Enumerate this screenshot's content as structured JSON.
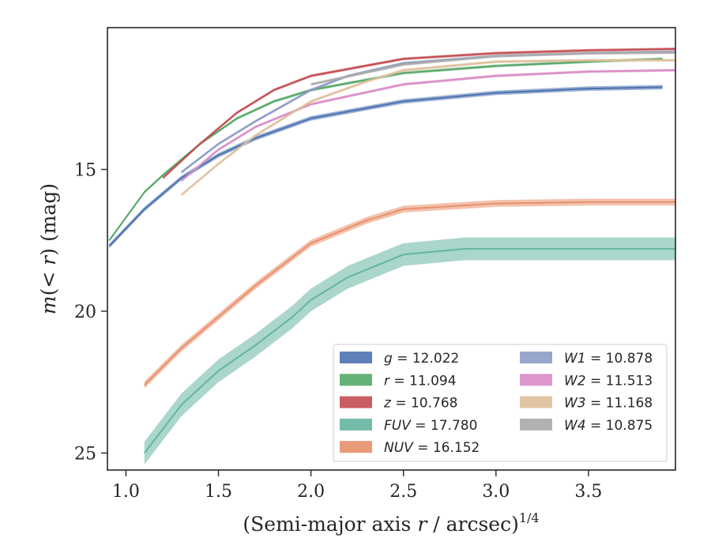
{
  "chart_data": {
    "type": "line",
    "title": "",
    "xlabel": "(Semi-major axis r / arcsec)^1/4",
    "xlabel_main": "(Semi-major axis ",
    "xlabel_var": "r",
    "xlabel_tail": " / arcsec)",
    "xlabel_exp": "1/4",
    "ylabel": "m(< r) (mag)",
    "ylabel_main": "m",
    "ylabel_mid": "(< ",
    "ylabel_var": "r",
    "ylabel_tail": ") (mag)",
    "xlim": [
      0.9,
      3.97
    ],
    "ylim": [
      25.6,
      10.0
    ],
    "y_inverted": true,
    "xticks": [
      1.0,
      1.5,
      2.0,
      2.5,
      3.0,
      3.5
    ],
    "xtick_labels": [
      "1.0",
      "1.5",
      "2.0",
      "2.5",
      "3.0",
      "3.5"
    ],
    "yticks": [
      15,
      20,
      25
    ],
    "ytick_labels": [
      "15",
      "20",
      "25"
    ],
    "grid": false,
    "legend_placement": "lower-right",
    "legend_columns": 2,
    "series": [
      {
        "name": "g = 12.022",
        "var": "g",
        "value": "12.022",
        "color": "#4c72b0",
        "x": [
          0.91,
          1.1,
          1.3,
          1.5,
          1.7,
          2.0,
          2.5,
          3.0,
          3.5,
          3.9
        ],
        "y": [
          17.7,
          16.4,
          15.3,
          14.5,
          13.9,
          13.2,
          12.6,
          12.3,
          12.15,
          12.1
        ],
        "band": 0.08
      },
      {
        "name": "r = 11.094",
        "var": "r",
        "value": "11.094",
        "color": "#55a868",
        "x": [
          0.91,
          1.1,
          1.2,
          1.4,
          1.6,
          1.8,
          2.0,
          2.5,
          3.0,
          3.5,
          3.9
        ],
        "y": [
          17.5,
          15.8,
          15.2,
          14.1,
          13.2,
          12.6,
          12.2,
          11.6,
          11.35,
          11.2,
          11.1
        ],
        "band": 0.05
      },
      {
        "name": "z = 10.768",
        "var": "z",
        "value": "10.768",
        "color": "#c44e52",
        "x": [
          1.2,
          1.4,
          1.6,
          1.8,
          2.0,
          2.5,
          3.0,
          3.5,
          3.97
        ],
        "y": [
          15.3,
          14.1,
          13.0,
          12.2,
          11.7,
          11.1,
          10.9,
          10.8,
          10.75
        ],
        "band": 0.05
      },
      {
        "name": "FUV = 17.780",
        "var": "FUV",
        "value": "17.780",
        "color": "#64b5a0",
        "x": [
          1.1,
          1.3,
          1.5,
          1.7,
          1.9,
          2.0,
          2.2,
          2.5,
          2.83,
          3.5,
          3.97
        ],
        "y": [
          25.0,
          23.3,
          22.1,
          21.2,
          20.2,
          19.6,
          18.8,
          18.0,
          17.8,
          17.8,
          17.8
        ],
        "band": 0.4
      },
      {
        "name": "NUV = 16.152",
        "var": "NUV",
        "value": "16.152",
        "color": "#e8906a",
        "x": [
          1.1,
          1.3,
          1.5,
          1.7,
          2.0,
          2.3,
          2.5,
          3.0,
          3.5,
          3.97
        ],
        "y": [
          22.6,
          21.3,
          20.2,
          19.1,
          17.6,
          16.8,
          16.4,
          16.2,
          16.15,
          16.15
        ],
        "band": 0.12
      },
      {
        "name": "W1 = 10.878",
        "var": "W1",
        "value": "10.878",
        "color": "#8c9cc4",
        "x": [
          1.3,
          1.5,
          1.7,
          2.0,
          2.2,
          2.5,
          3.0,
          3.5,
          3.97
        ],
        "y": [
          15.1,
          14.1,
          13.3,
          12.2,
          11.7,
          11.25,
          11.0,
          10.9,
          10.85
        ],
        "band": 0.05
      },
      {
        "name": "W2 = 11.513",
        "var": "W2",
        "value": "11.513",
        "color": "#d98cc8",
        "x": [
          1.3,
          1.5,
          1.7,
          2.0,
          2.5,
          3.0,
          3.5,
          3.97
        ],
        "y": [
          15.4,
          14.3,
          13.5,
          12.7,
          12.0,
          11.7,
          11.55,
          11.5
        ],
        "band": 0.05
      },
      {
        "name": "W3 = 11.168",
        "var": "W3",
        "value": "11.168",
        "color": "#dfc09a",
        "x": [
          1.3,
          1.5,
          1.7,
          2.0,
          2.3,
          2.5,
          3.0,
          3.5,
          3.97
        ],
        "y": [
          15.9,
          14.8,
          13.8,
          12.6,
          11.9,
          11.5,
          11.2,
          11.15,
          11.15
        ],
        "band": 0.05
      },
      {
        "name": "W4 = 10.875",
        "var": "W4",
        "value": "10.875",
        "color": "#aaaaaa",
        "x": [
          2.0,
          2.5,
          3.0,
          3.5,
          3.97
        ],
        "y": [
          12.0,
          11.3,
          11.0,
          10.9,
          10.88
        ],
        "band": 0.05
      }
    ]
  }
}
